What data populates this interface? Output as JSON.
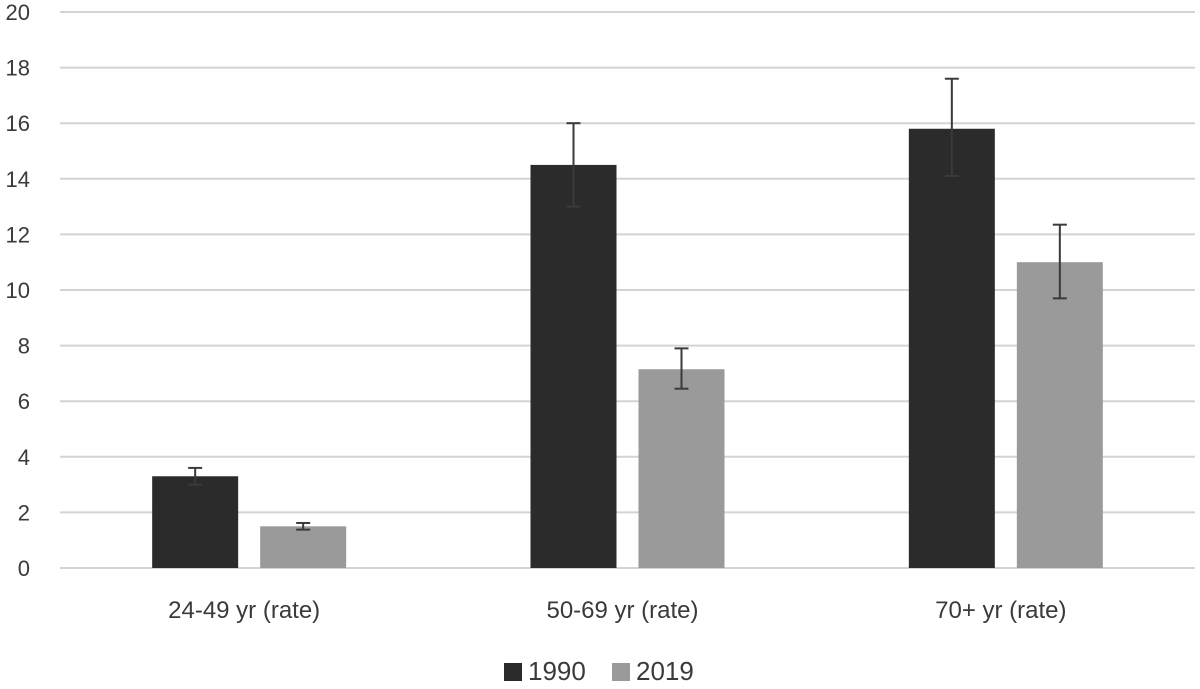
{
  "chart_data": {
    "type": "bar",
    "title": "",
    "xlabel": "",
    "ylabel": "",
    "categories": [
      "24-49 yr (rate)",
      "50-69 yr (rate)",
      "70+ yr (rate)"
    ],
    "ylim": [
      0,
      20
    ],
    "yticks": [
      0,
      2,
      4,
      6,
      8,
      10,
      12,
      14,
      16,
      18,
      20
    ],
    "ytick_labels": [
      "0",
      "2",
      "4",
      "6",
      "8",
      "10",
      "12",
      "14",
      "16",
      "18",
      "20"
    ],
    "grid": true,
    "legend_position": "bottom",
    "series": [
      {
        "name": "1990",
        "color": "#2b2b2b",
        "values": [
          3.3,
          14.5,
          15.8
        ],
        "error_low": [
          3.0,
          13.0,
          14.1
        ],
        "error_high": [
          3.6,
          16.0,
          17.6
        ]
      },
      {
        "name": "2019",
        "color": "#9a9a9a",
        "values": [
          1.5,
          7.15,
          11.0
        ],
        "error_low": [
          1.38,
          6.45,
          9.7
        ],
        "error_high": [
          1.62,
          7.9,
          12.35
        ]
      }
    ]
  }
}
